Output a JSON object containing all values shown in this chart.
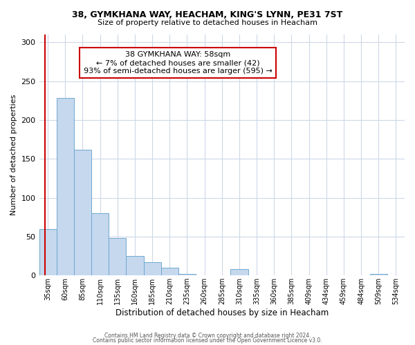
{
  "title_line1": "38, GYMKHANA WAY, HEACHAM, KING'S LYNN, PE31 7ST",
  "title_line2": "Size of property relative to detached houses in Heacham",
  "xlabel": "Distribution of detached houses by size in Heacham",
  "ylabel": "Number of detached properties",
  "bar_labels": [
    "35sqm",
    "60sqm",
    "85sqm",
    "110sqm",
    "135sqm",
    "160sqm",
    "185sqm",
    "210sqm",
    "235sqm",
    "260sqm",
    "285sqm",
    "310sqm",
    "335sqm",
    "360sqm",
    "385sqm",
    "409sqm",
    "434sqm",
    "459sqm",
    "484sqm",
    "509sqm",
    "534sqm"
  ],
  "bar_heights": [
    60,
    228,
    162,
    80,
    48,
    25,
    17,
    10,
    2,
    0,
    0,
    8,
    0,
    0,
    0,
    0,
    0,
    0,
    0,
    2,
    0
  ],
  "bar_color": "#c5d8ee",
  "bar_edge_color": "#6fa8d0",
  "red_line_x": -0.15,
  "annotation_line1": "38 GYMKHANA WAY: 58sqm",
  "annotation_line2": "← 7% of detached houses are smaller (42)",
  "annotation_line3": "93% of semi-detached houses are larger (595) →",
  "red_line_color": "#cc0000",
  "annotation_box_color": "#ffffff",
  "annotation_box_edge_color": "#cc0000",
  "ylim": [
    0,
    310
  ],
  "yticks": [
    0,
    50,
    100,
    150,
    200,
    250,
    300
  ],
  "footer_line1": "Contains HM Land Registry data © Crown copyright and database right 2024.",
  "footer_line2": "Contains public sector information licensed under the Open Government Licence v3.0.",
  "background_color": "#ffffff",
  "grid_color": "#cdd8e8"
}
